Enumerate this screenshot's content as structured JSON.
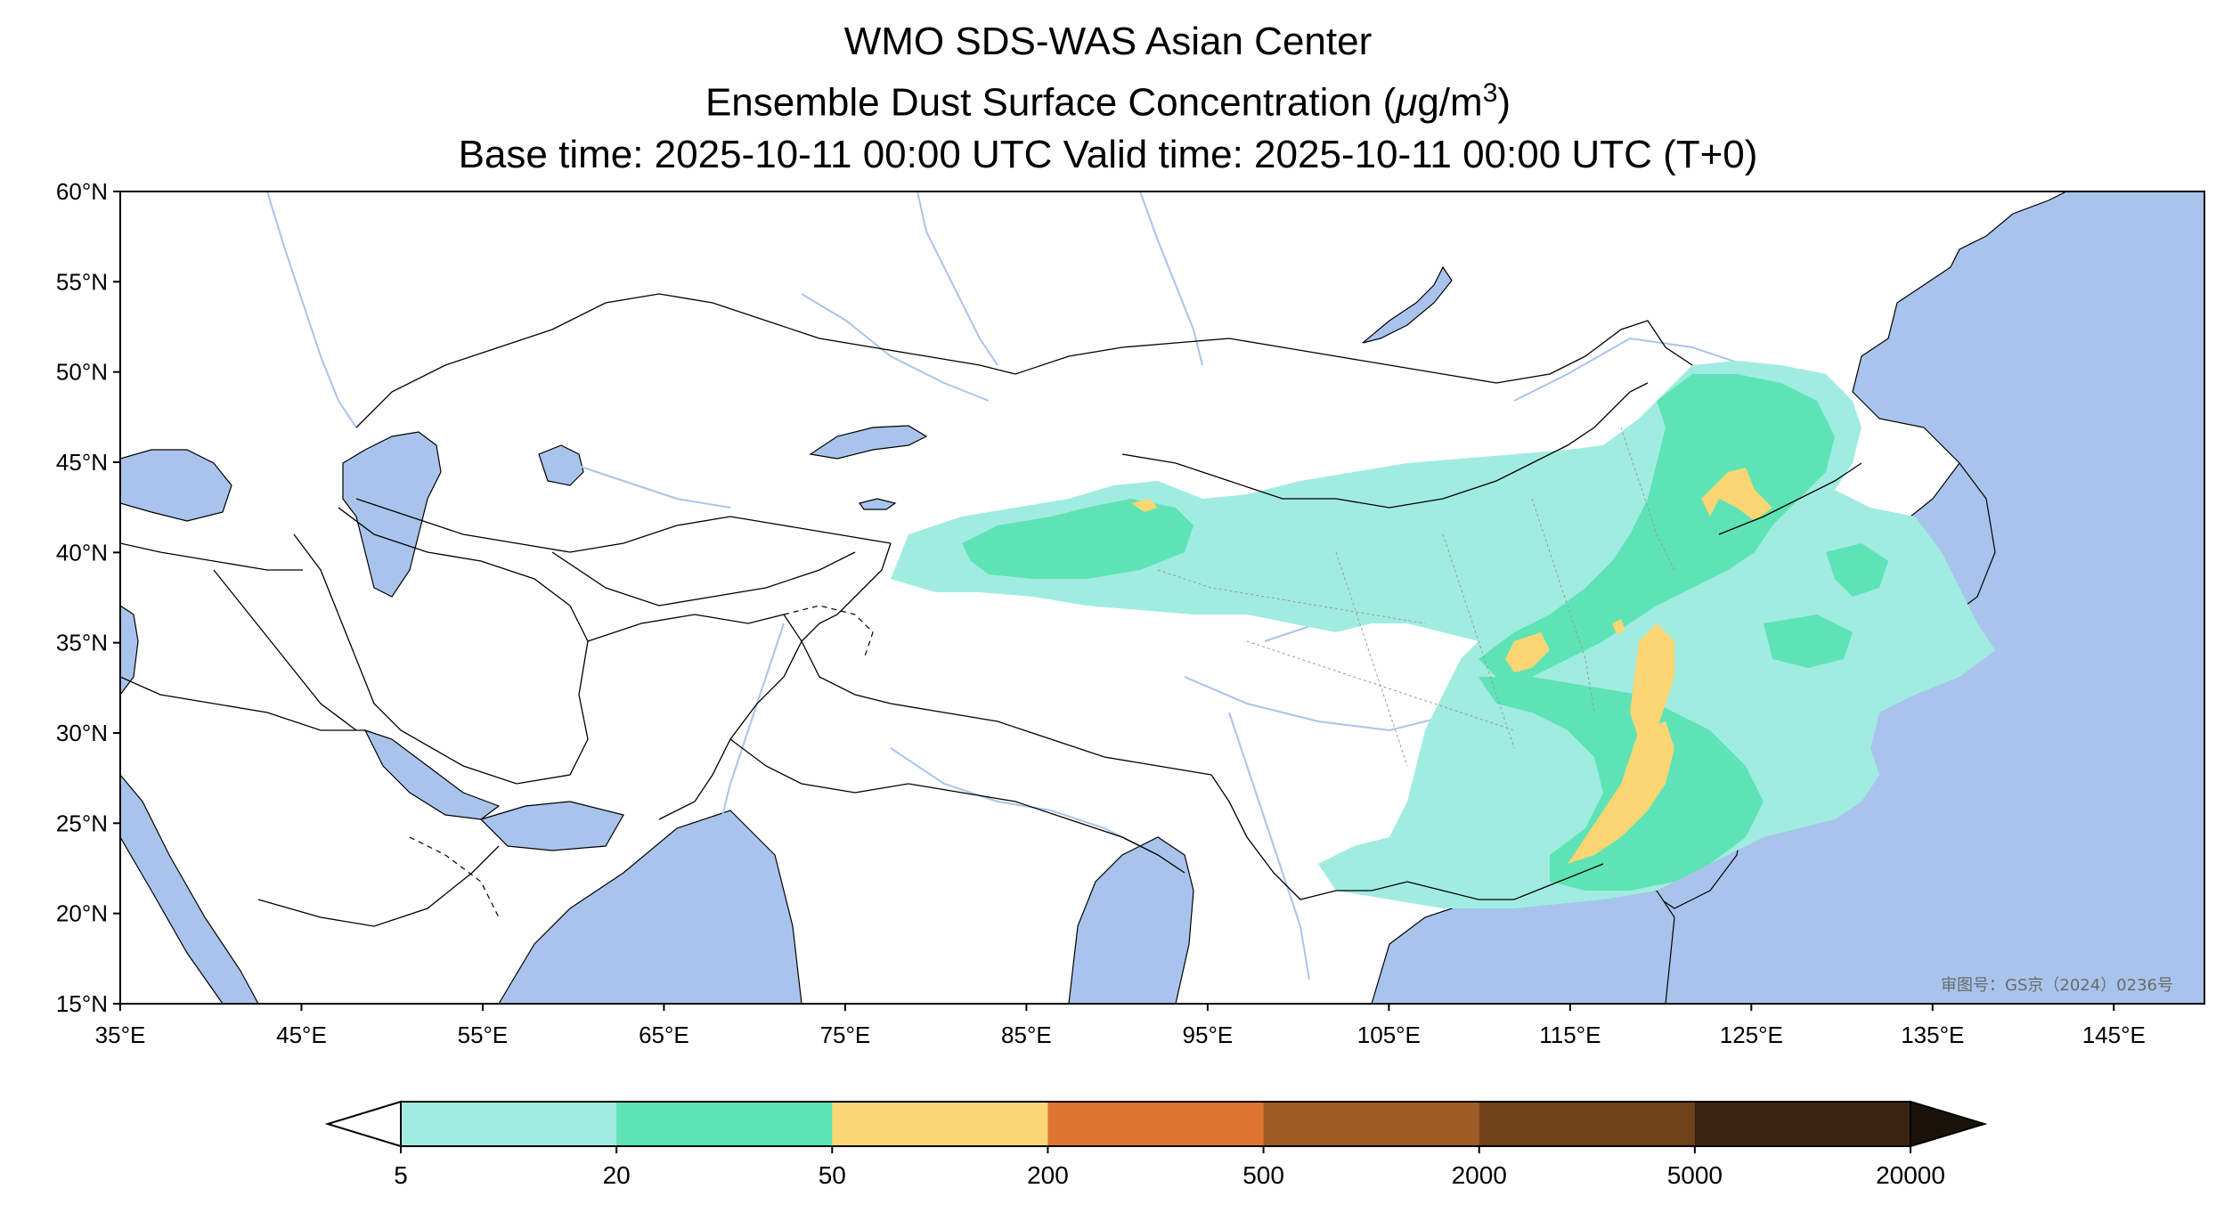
{
  "title": {
    "line1": "WMO SDS-WAS Asian Center",
    "line2_prefix": "Ensemble Dust Surface Concentration (",
    "line2_mu": "μ",
    "line2_unit": "g/m",
    "line2_sup": "3",
    "line2_suffix": ")",
    "line3": "Base time: 2025-10-11 00:00 UTC Valid time: 2025-10-11 00:00 UTC (T+0)"
  },
  "map": {
    "lon_range": [
      35,
      150
    ],
    "lat_range": [
      15,
      60
    ],
    "lat_ticks": [
      "60°N",
      "55°N",
      "50°N",
      "45°N",
      "40°N",
      "35°N",
      "30°N",
      "25°N",
      "20°N",
      "15°N"
    ],
    "lon_ticks": [
      "35°E",
      "45°E",
      "55°E",
      "65°E",
      "75°E",
      "85°E",
      "95°E",
      "105°E",
      "115°E",
      "125°E",
      "135°E",
      "145°E"
    ],
    "approval_text": "审图号：GS京（2024）0236号",
    "colors": {
      "ocean": "#a9c4ec",
      "land": "#ffffff",
      "river": "#a9c4ec",
      "border": "#000000"
    }
  },
  "colorbar": {
    "ticks": [
      "5",
      "20",
      "50",
      "200",
      "500",
      "2000",
      "5000",
      "20000"
    ],
    "colors": [
      "#a1ece0",
      "#5de3b6",
      "#fbd672",
      "#dd7530",
      "#9e5b24",
      "#6f4219",
      "#3a2411"
    ],
    "under_color": "#ffffff",
    "over_color": "#1a1208"
  }
}
